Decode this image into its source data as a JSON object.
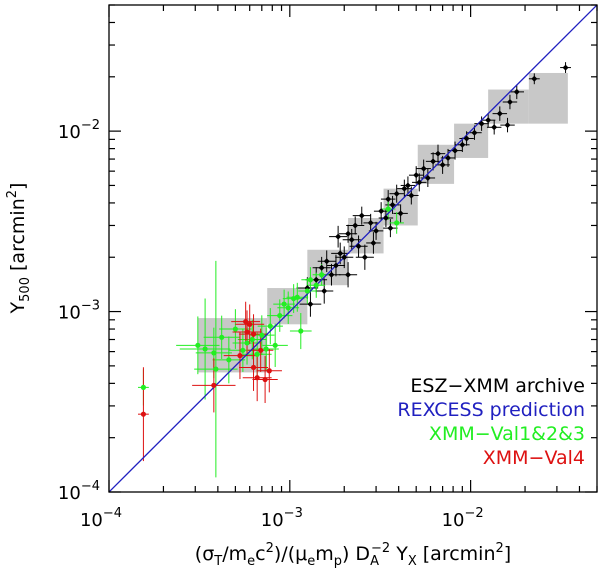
{
  "chart_data": {
    "type": "scatter",
    "title": "",
    "xlabel": "(σT/mec²)/(μemp) DA⁻² YX [arcmin²]",
    "ylabel": "Y500 [arcmin²]",
    "x_scale": "log",
    "y_scale": "log",
    "xlim": [
      0.0001,
      0.05
    ],
    "ylim": [
      0.0001,
      0.05
    ],
    "x_ticks": [
      {
        "value": 0.0001,
        "label": "10",
        "exp": "−4"
      },
      {
        "value": 0.001,
        "label": "10",
        "exp": "−3"
      },
      {
        "value": 0.01,
        "label": "10",
        "exp": "−2"
      }
    ],
    "y_ticks": [
      {
        "value": 0.0001,
        "label": "10",
        "exp": "−4"
      },
      {
        "value": 0.001,
        "label": "10",
        "exp": "−3"
      },
      {
        "value": 0.01,
        "label": "10",
        "exp": "−2"
      }
    ],
    "colors": {
      "archive": "#000000",
      "prediction": "#2020c0",
      "val123": "#22ee22",
      "val4": "#dd1111",
      "bins": "#c8c8c8"
    },
    "prediction_line": {
      "name": "REXCESS prediction",
      "x": [
        0.0001,
        0.05
      ],
      "y": [
        0.0001,
        0.05
      ]
    },
    "bins": [
      {
        "x": [
          0.00031,
          0.00075
        ],
        "y": [
          0.00046,
          0.00092
        ]
      },
      {
        "x": [
          0.00075,
          0.00125
        ],
        "y": [
          0.00085,
          0.00135
        ]
      },
      {
        "x": [
          0.00125,
          0.0021
        ],
        "y": [
          0.0014,
          0.0022
        ]
      },
      {
        "x": [
          0.0021,
          0.0033
        ],
        "y": [
          0.0021,
          0.0033
        ]
      },
      {
        "x": [
          0.0033,
          0.0051
        ],
        "y": [
          0.003,
          0.0048
        ]
      },
      {
        "x": [
          0.0051,
          0.0081
        ],
        "y": [
          0.0051,
          0.0084
        ]
      },
      {
        "x": [
          0.0081,
          0.0125
        ],
        "y": [
          0.0071,
          0.011
        ]
      },
      {
        "x": [
          0.0125,
          0.021
        ],
        "y": [
          0.011,
          0.017
        ]
      },
      {
        "x": [
          0.021,
          0.0345
        ],
        "y": [
          0.011,
          0.021
        ]
      }
    ],
    "legend": [
      {
        "label": "ESZ−XMM archive",
        "color": "#000000"
      },
      {
        "label": "REXCESS prediction",
        "color": "#2020c0"
      },
      {
        "label": "XMM−Val1&2&3",
        "color": "#22ee22"
      },
      {
        "label": "XMM−Val4",
        "color": "#dd1111"
      }
    ],
    "series": [
      {
        "name": "ESZ−XMM archive",
        "points": [
          [
            0.00125,
            0.00135,
            0.06,
            0.06
          ],
          [
            0.0014,
            0.0015,
            0.06,
            0.07
          ],
          [
            0.0015,
            0.00175,
            0.05,
            0.06
          ],
          [
            0.0016,
            0.0019,
            0.05,
            0.06
          ],
          [
            0.0017,
            0.0016,
            0.05,
            0.06
          ],
          [
            0.0018,
            0.0018,
            0.05,
            0.06
          ],
          [
            0.0019,
            0.0021,
            0.05,
            0.06
          ],
          [
            0.002,
            0.002,
            0.05,
            0.06
          ],
          [
            0.00185,
            0.0026,
            0.05,
            0.06
          ],
          [
            0.0021,
            0.0027,
            0.05,
            0.05
          ],
          [
            0.0022,
            0.0025,
            0.05,
            0.06
          ],
          [
            0.0023,
            0.003,
            0.05,
            0.05
          ],
          [
            0.0024,
            0.0023,
            0.05,
            0.06
          ],
          [
            0.0025,
            0.0034,
            0.05,
            0.05
          ],
          [
            0.0026,
            0.002,
            0.05,
            0.07
          ],
          [
            0.0021,
            0.0016,
            0.05,
            0.07
          ],
          [
            0.0028,
            0.0031,
            0.04,
            0.05
          ],
          [
            0.003,
            0.0028,
            0.04,
            0.05
          ],
          [
            0.0032,
            0.0036,
            0.04,
            0.05
          ],
          [
            0.0034,
            0.0033,
            0.04,
            0.05
          ],
          [
            0.0035,
            0.0042,
            0.04,
            0.05
          ],
          [
            0.0037,
            0.0039,
            0.04,
            0.05
          ],
          [
            0.0039,
            0.0045,
            0.04,
            0.05
          ],
          [
            0.0041,
            0.0035,
            0.04,
            0.05
          ],
          [
            0.0043,
            0.0048,
            0.04,
            0.05
          ],
          [
            0.0045,
            0.005,
            0.04,
            0.05
          ],
          [
            0.0047,
            0.0044,
            0.04,
            0.05
          ],
          [
            0.005,
            0.0057,
            0.04,
            0.05
          ],
          [
            0.0052,
            0.0052,
            0.04,
            0.05
          ],
          [
            0.0055,
            0.0062,
            0.04,
            0.05
          ],
          [
            0.0058,
            0.0055,
            0.04,
            0.05
          ],
          [
            0.0062,
            0.0068,
            0.04,
            0.05
          ],
          [
            0.0066,
            0.0075,
            0.04,
            0.05
          ],
          [
            0.007,
            0.0065,
            0.04,
            0.05
          ],
          [
            0.0075,
            0.0071,
            0.04,
            0.05
          ],
          [
            0.0082,
            0.0078,
            0.04,
            0.05
          ],
          [
            0.009,
            0.0084,
            0.04,
            0.04
          ],
          [
            0.0095,
            0.0091,
            0.04,
            0.04
          ],
          [
            0.0105,
            0.0098,
            0.04,
            0.04
          ],
          [
            0.0115,
            0.011,
            0.04,
            0.04
          ],
          [
            0.0125,
            0.0115,
            0.04,
            0.04
          ],
          [
            0.0135,
            0.0105,
            0.04,
            0.04
          ],
          [
            0.0145,
            0.0125,
            0.04,
            0.04
          ],
          [
            0.016,
            0.0108,
            0.04,
            0.04
          ],
          [
            0.0165,
            0.0145,
            0.04,
            0.04
          ],
          [
            0.018,
            0.0165,
            0.04,
            0.04
          ],
          [
            0.0225,
            0.0195,
            0.03,
            0.03
          ],
          [
            0.0335,
            0.0225,
            0.03,
            0.03
          ],
          [
            0.0013,
            0.0011,
            0.06,
            0.07
          ],
          [
            0.00155,
            0.0013,
            0.05,
            0.07
          ],
          [
            0.0036,
            0.0029,
            0.04,
            0.05
          ],
          [
            0.0029,
            0.0024,
            0.04,
            0.06
          ]
        ]
      },
      {
        "name": "XMM−Val1&2&3",
        "points": [
          [
            0.000155,
            0.00038,
            0.03,
            0.1
          ],
          [
            0.00031,
            0.00065,
            0.12,
            0.16
          ],
          [
            0.00038,
            0.00059,
            0.1,
            0.14
          ],
          [
            0.00042,
            0.00072,
            0.1,
            0.12
          ],
          [
            0.00046,
            0.00054,
            0.09,
            0.13
          ],
          [
            0.0005,
            0.0008,
            0.09,
            0.11
          ],
          [
            0.00055,
            0.00061,
            0.08,
            0.12
          ],
          [
            0.00058,
            0.00067,
            0.08,
            0.12
          ],
          [
            0.00062,
            0.0007,
            0.08,
            0.11
          ],
          [
            0.00066,
            0.00058,
            0.08,
            0.12
          ],
          [
            0.0007,
            0.00074,
            0.07,
            0.11
          ],
          [
            0.00074,
            0.00062,
            0.07,
            0.12
          ],
          [
            0.00078,
            0.00083,
            0.07,
            0.1
          ],
          [
            0.00083,
            0.00065,
            0.07,
            0.12
          ],
          [
            0.00088,
            0.00095,
            0.07,
            0.09
          ],
          [
            0.00093,
            0.0011,
            0.06,
            0.08
          ],
          [
            0.00098,
            0.00105,
            0.06,
            0.09
          ],
          [
            0.00105,
            0.00118,
            0.06,
            0.08
          ],
          [
            0.0011,
            0.0012,
            0.06,
            0.08
          ],
          [
            0.00115,
            0.00078,
            0.06,
            0.1
          ],
          [
            0.00125,
            0.0013,
            0.05,
            0.07
          ],
          [
            0.0013,
            0.0015,
            0.05,
            0.07
          ],
          [
            0.0014,
            0.0014,
            0.05,
            0.07
          ],
          [
            0.0015,
            0.0016,
            0.05,
            0.06
          ],
          [
            0.0035,
            0.0037,
            0.04,
            0.06
          ],
          [
            0.0039,
            0.0031,
            0.04,
            0.06
          ],
          [
            0.00034,
            0.00062,
            0.14,
            0.28
          ],
          [
            0.00039,
            0.00048,
            0.12,
            0.6
          ]
        ]
      },
      {
        "name": "XMM−Val4",
        "points": [
          [
            0.000155,
            0.00027,
            0.03,
            0.26
          ],
          [
            0.00038,
            0.00039,
            0.12,
            0.15
          ],
          [
            0.00053,
            0.00057,
            0.09,
            0.13
          ],
          [
            0.00057,
            0.00088,
            0.08,
            0.11
          ],
          [
            0.0006,
            0.00085,
            0.08,
            0.11
          ],
          [
            0.00063,
            0.00075,
            0.08,
            0.11
          ],
          [
            0.00066,
            0.00043,
            0.08,
            0.13
          ],
          [
            0.00069,
            0.00061,
            0.07,
            0.12
          ],
          [
            0.00073,
            0.00042,
            0.07,
            0.13
          ],
          [
            0.00077,
            0.00047,
            0.07,
            0.12
          ],
          [
            0.00063,
            0.00049,
            0.08,
            0.13
          ],
          [
            0.00058,
            0.00077,
            0.08,
            0.12
          ]
        ]
      }
    ]
  }
}
